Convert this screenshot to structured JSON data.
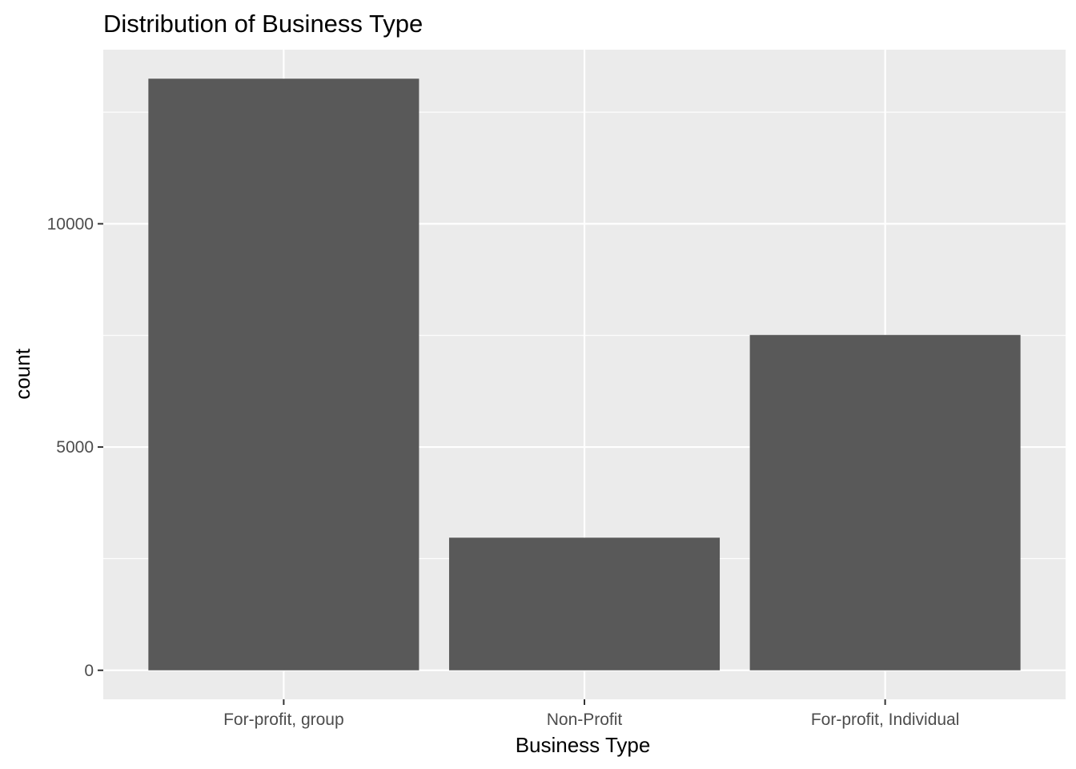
{
  "chart_data": {
    "type": "bar",
    "title": "Distribution of Business Type",
    "xlabel": "Business Type",
    "ylabel": "count",
    "categories": [
      "For-profit, group",
      "Non-Profit",
      "For-profit, Individual"
    ],
    "values": [
      13250,
      2970,
      7510
    ],
    "ylim": [
      -650,
      13900
    ],
    "yticks": [
      0,
      5000,
      10000
    ],
    "ytick_labels": [
      "0",
      "5000",
      "10000"
    ],
    "grid": true,
    "legend": "none",
    "colors": {
      "panel": "#EBEBEB",
      "grid": "#FFFFFF",
      "bar": "#595959",
      "tick": "#333333",
      "tick_text": "#4D4D4D"
    }
  }
}
